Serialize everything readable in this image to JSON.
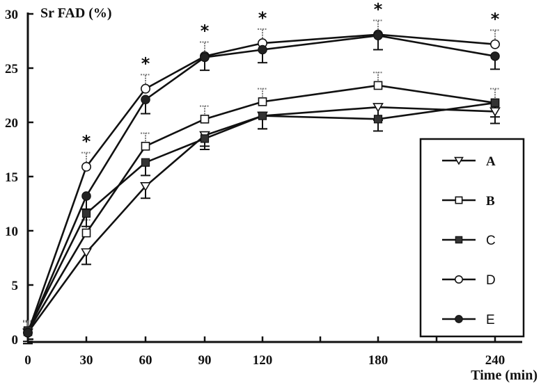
{
  "chart_data": {
    "type": "line",
    "title": "",
    "ylabel": "Sr FAD (%)",
    "xlabel": "Time (min)",
    "x": [
      0,
      30,
      60,
      90,
      120,
      180,
      240
    ],
    "x_tick_labels": [
      "0",
      "30",
      "60",
      "90",
      "120",
      "180",
      "240"
    ],
    "y_tick_labels": [
      "0",
      "5",
      "10",
      "15",
      "20",
      "25",
      "30"
    ],
    "ylim": [
      0,
      30
    ],
    "x_scale": "nonlinear-spacing (180 and 240 spaced as 60-min steps)",
    "grid": false,
    "legend_position": "right-center",
    "significance_marks": [
      {
        "x": 30,
        "label": "*"
      },
      {
        "x": 60,
        "label": "*"
      },
      {
        "x": 90,
        "label": "*"
      },
      {
        "x": 120,
        "label": "*"
      },
      {
        "x": 180,
        "label": "*"
      },
      {
        "x": 240,
        "label": "*"
      }
    ],
    "series": [
      {
        "name": "A",
        "marker": "triangle-down-open",
        "values": [
          0.6,
          8.0,
          14.1,
          18.8,
          20.6,
          21.4,
          21.0
        ],
        "error": [
          1.0,
          1.1,
          1.1,
          1.0,
          1.2,
          1.2,
          1.1
        ]
      },
      {
        "name": "B",
        "marker": "square-open",
        "values": [
          0.7,
          9.8,
          17.8,
          20.3,
          21.9,
          23.4,
          21.8
        ],
        "error": [
          1.0,
          1.2,
          1.2,
          1.2,
          1.2,
          1.2,
          1.3
        ]
      },
      {
        "name": "C",
        "marker": "square-filled",
        "values": [
          0.8,
          11.6,
          16.3,
          18.5,
          20.6,
          20.3,
          21.8
        ],
        "error": [
          1.0,
          1.2,
          1.2,
          1.0,
          1.2,
          1.1,
          1.3
        ]
      },
      {
        "name": "D",
        "marker": "circle-open",
        "values": [
          0.6,
          15.9,
          23.1,
          26.1,
          27.3,
          28.1,
          27.2
        ],
        "error": [
          1.0,
          1.3,
          1.3,
          1.3,
          1.3,
          1.3,
          1.3
        ]
      },
      {
        "name": "E",
        "marker": "circle-filled",
        "values": [
          0.6,
          13.2,
          22.1,
          26.0,
          26.7,
          28.0,
          26.1
        ],
        "error": [
          1.0,
          1.2,
          1.3,
          1.2,
          1.2,
          1.3,
          1.2
        ]
      }
    ]
  }
}
